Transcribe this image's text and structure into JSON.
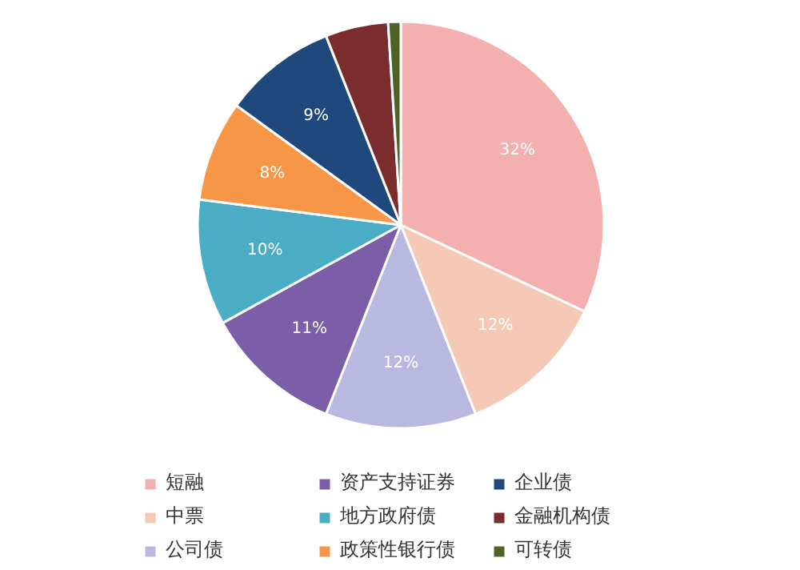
{
  "chart_data": {
    "type": "pie",
    "categories": [
      "短融",
      "中票",
      "公司债",
      "资产支持证券",
      "地方政府债",
      "政策性银行债",
      "企业债",
      "金融机构债",
      "可转债"
    ],
    "values": [
      32,
      12,
      12,
      11,
      10,
      8,
      9,
      5,
      1
    ],
    "colors": [
      "#f4b0ae",
      "#f5c9b5",
      "#b9b8e0",
      "#7b5ea7",
      "#4bacc6",
      "#f79646",
      "#1f497d",
      "#7b2c2c",
      "#4f6228"
    ],
    "value_labels": [
      "32%",
      "12%",
      "12%",
      "11%",
      "10%",
      "8%",
      "9%",
      null,
      null
    ],
    "legend": "bottom"
  }
}
